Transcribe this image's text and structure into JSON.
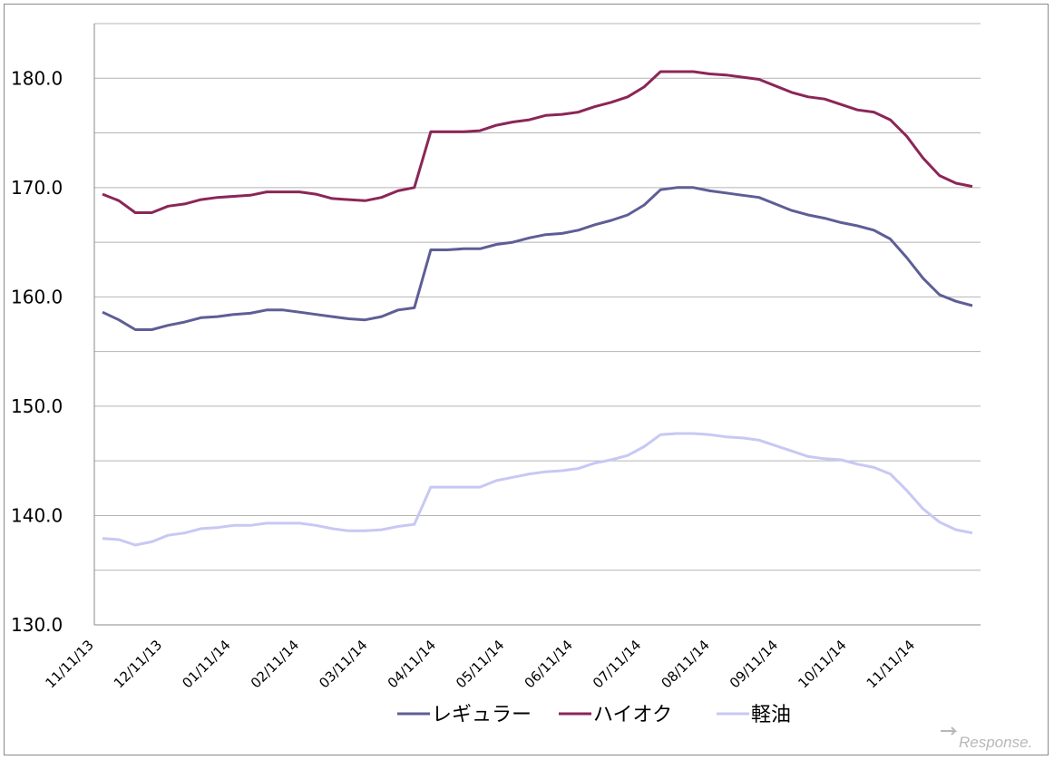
{
  "chart_data": {
    "type": "line",
    "title": "",
    "xlabel": "",
    "ylabel": "",
    "ylim": [
      130,
      185
    ],
    "y_ticks": [
      "130.0",
      "140.0",
      "150.0",
      "160.0",
      "170.0",
      "180.0"
    ],
    "x_tick_labels": [
      "11/11/13",
      "12/11/13",
      "01/11/14",
      "02/11/14",
      "03/11/14",
      "04/11/14",
      "05/11/14",
      "06/11/14",
      "07/11/14",
      "08/11/14",
      "09/11/14",
      "10/11/14",
      "11/11/14"
    ],
    "series": [
      {
        "name": "レギュラー",
        "color": "#5e5e96",
        "values": [
          158.6,
          157.9,
          157.0,
          157.0,
          157.4,
          157.7,
          158.1,
          158.2,
          158.4,
          158.5,
          158.8,
          158.8,
          158.6,
          158.4,
          158.2,
          158.0,
          157.9,
          158.2,
          158.8,
          159.0,
          164.3,
          164.3,
          164.4,
          164.4,
          164.8,
          165.0,
          165.4,
          165.7,
          165.8,
          166.1,
          166.6,
          167.0,
          167.5,
          168.4,
          169.8,
          170.0,
          170.0,
          169.7,
          169.5,
          169.3,
          169.1,
          168.5,
          167.9,
          167.5,
          167.2,
          166.8,
          166.5,
          166.1,
          165.3,
          163.6,
          161.7,
          160.2,
          159.6,
          159.2
        ]
      },
      {
        "name": "ハイオク",
        "color": "#8b2657",
        "values": [
          169.4,
          168.8,
          167.7,
          167.7,
          168.3,
          168.5,
          168.9,
          169.1,
          169.2,
          169.3,
          169.6,
          169.6,
          169.6,
          169.4,
          169.0,
          168.9,
          168.8,
          169.1,
          169.7,
          170.0,
          175.1,
          175.1,
          175.1,
          175.2,
          175.7,
          176.0,
          176.2,
          176.6,
          176.7,
          176.9,
          177.4,
          177.8,
          178.3,
          179.2,
          180.6,
          180.6,
          180.6,
          180.4,
          180.3,
          180.1,
          179.9,
          179.3,
          178.7,
          178.3,
          178.1,
          177.6,
          177.1,
          176.9,
          176.2,
          174.7,
          172.7,
          171.1,
          170.4,
          170.1
        ]
      },
      {
        "name": "軽油",
        "color": "#c8c8f4",
        "values": [
          137.9,
          137.8,
          137.3,
          137.6,
          138.2,
          138.4,
          138.8,
          138.9,
          139.1,
          139.1,
          139.3,
          139.3,
          139.3,
          139.1,
          138.8,
          138.6,
          138.6,
          138.7,
          139.0,
          139.2,
          142.6,
          142.6,
          142.6,
          142.6,
          143.2,
          143.5,
          143.8,
          144.0,
          144.1,
          144.3,
          144.8,
          145.1,
          145.5,
          146.3,
          147.4,
          147.5,
          147.5,
          147.4,
          147.2,
          147.1,
          146.9,
          146.4,
          145.9,
          145.4,
          145.2,
          145.1,
          144.7,
          144.4,
          143.8,
          142.3,
          140.6,
          139.4,
          138.7,
          138.4
        ]
      }
    ],
    "legend_position": "bottom"
  },
  "watermark": "Response."
}
